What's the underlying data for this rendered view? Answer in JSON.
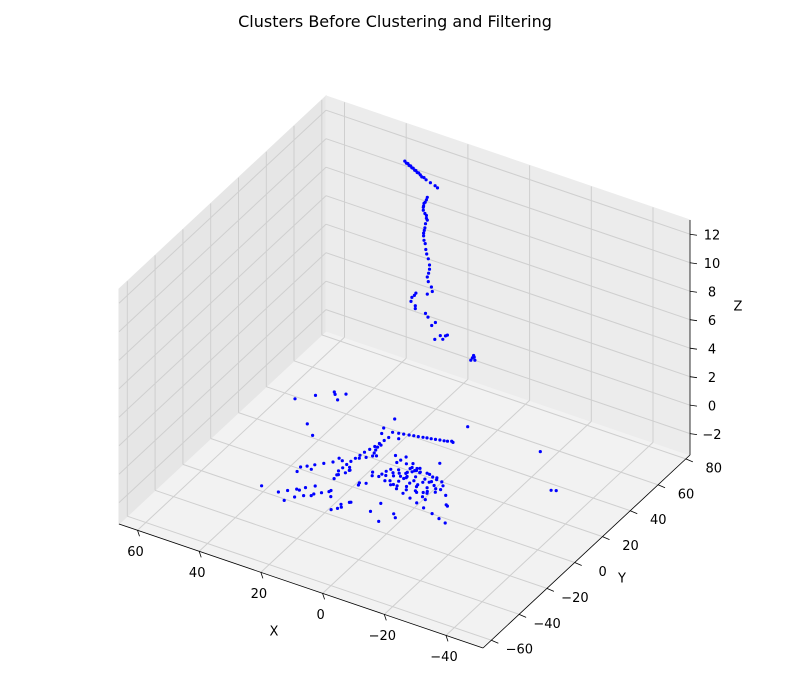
{
  "chart_data": {
    "type": "scatter",
    "title": "Clusters Before Clustering and Filtering",
    "xlabel": "X",
    "ylabel": "Y",
    "zlabel": "Z",
    "xlim": [
      -52,
      66
    ],
    "ylim": [
      -66,
      83
    ],
    "zlim": [
      -3.5,
      13
    ],
    "xticks": [
      "−40",
      "−20",
      "0",
      "20",
      "40",
      "60"
    ],
    "yticks": [
      "−60",
      "−40",
      "−20",
      "0",
      "20",
      "40",
      "60",
      "80"
    ],
    "zticks": [
      "−2",
      "0",
      "2",
      "4",
      "6",
      "8",
      "10",
      "12"
    ],
    "grid": true,
    "projection": "3d",
    "marker_color": "#0000ff",
    "series": [
      {
        "type": "scatter3d",
        "x": [
          33.6,
          33.1,
          32.6,
          32.2,
          31.7,
          31.3,
          30.9,
          30.4,
          30.0,
          29.6,
          29.1,
          28.6,
          28.1,
          27.4,
          26.7,
          25.3,
          23.8,
          23.0,
          26.3,
          26.6,
          27.0,
          27.4,
          27.5,
          27.6,
          27.6,
          27.1,
          26.6,
          26.6,
          26.3,
          26.9,
          27.1,
          27.3,
          27.5,
          27.5,
          27.4,
          27.0,
          26.8,
          26.5,
          26.0,
          25.6,
          25.6,
          25.9,
          26.3,
          26.0,
          25.0,
          24.7,
          26.3,
          30.0,
          30.5,
          31.3,
          31.6,
          30.2,
          30.2,
          26.9,
          26.1,
          23.7,
          24.9,
          19.8,
          20.4,
          22.1,
          21.3,
          23.9,
          11.3,
          11.1,
          11.7,
          10.9,
          12.2,
          -4.6,
          -5.2,
          -3.6,
          -2.7,
          -1.5,
          -0.3,
          0.9,
          2.1,
          3.2,
          4.5,
          5.8,
          7.1,
          8.6,
          10.0,
          11.7,
          -5.0,
          -3.7,
          -1.9,
          0.4,
          2.7,
          -42.0,
          -40.7,
          -20.1,
          -19.5,
          -9.7,
          -7.9,
          -23.9,
          -21.3,
          -18.4,
          -14.9,
          -12.0,
          -9.2,
          -6.3,
          -3.6,
          -1.2,
          1.2,
          3.7,
          6.3,
          -10.8,
          -9.2,
          -6.9,
          -4.0,
          -1.1,
          12.2,
          5.1,
          2.2,
          -1.7,
          -3.3,
          -7.4,
          -3.1,
          -1.9,
          -3.0,
          -5.0,
          -7.8,
          -10.4,
          -12.6,
          -13.9,
          -14.3,
          -13.7,
          -12.0,
          -9.3,
          -6.2,
          -3.0,
          0.0,
          2.3,
          3.3,
          2.7,
          0.7,
          -2.0,
          -5.1,
          -8.2,
          -10.6,
          -11.6,
          -10.9,
          -8.6,
          -5.4,
          -2.2,
          0.4,
          1.3,
          -0.3,
          -3.0,
          -5.7,
          -7.6,
          -7.8,
          -5.3,
          -2.7,
          -1.4,
          3.0,
          13.8,
          14.1,
          14.7,
          14.5,
          14.4,
          14.2,
          13.9,
          13.6,
          13.3,
          12.8,
          12.3,
          12.0,
          11.6,
          11.3,
          11.2,
          10.8,
          10.4,
          11.5,
          14.0,
          14.9,
          14.6,
          13.0,
          12.3,
          12.6,
          13.8,
          11.5,
          10.0,
          6.6,
          5.4,
          4.8,
          -3.6,
          9.5,
          11.6,
          13.0,
          16.4,
          18.3,
          20.1,
          21.9,
          23.4,
          24.7,
          16.4,
          18.3,
          20.0,
          21.8,
          23.6,
          11.7,
          13.2,
          14.7,
          16.7,
          18.5,
          8.6,
          17.8,
          21.6,
          24.4,
          19.1,
          14.9,
          29.2,
          3.8,
          4.1,
          -10.7,
          -9.3,
          -1.8,
          5.6,
          -12.9,
          -11.7,
          -10.1,
          5.0,
          6.4,
          6.7,
          5.5,
          3.6,
          -7.7,
          -13.2,
          -11.8,
          -17.0,
          -3.3,
          34.1,
          33.0,
          32.5,
          29.9,
          35.0,
          35.8,
          39.4,
          43.4,
          -4.7,
          -3.2,
          11.2,
          20.1,
          -28.3
        ],
        "y": [
          67.8,
          67.8,
          67.8,
          67.8,
          67.8,
          67.8,
          67.8,
          67.8,
          67.8,
          67.8,
          67.8,
          67.8,
          67.8,
          67.8,
          67.8,
          67.8,
          67.8,
          67.8,
          67.8,
          67.8,
          67.8,
          67.8,
          67.8,
          67.8,
          67.8,
          67.8,
          67.8,
          67.8,
          67.8,
          67.8,
          67.8,
          67.8,
          67.8,
          67.8,
          67.8,
          67.8,
          67.8,
          67.8,
          67.8,
          67.8,
          67.8,
          67.8,
          67.8,
          67.8,
          67.8,
          67.8,
          67.8,
          67.8,
          67.8,
          67.8,
          67.8,
          67.8,
          67.8,
          67.8,
          67.8,
          67.8,
          67.8,
          67.8,
          67.8,
          67.8,
          67.8,
          67.8,
          67.8,
          67.8,
          67.8,
          67.8,
          67.8,
          16.7,
          16.3,
          15.9,
          15.5,
          15.1,
          14.6,
          14.2,
          13.8,
          13.4,
          12.9,
          12.5,
          12.0,
          11.5,
          11.0,
          10.4,
          -7.2,
          -6.6,
          -5.8,
          -4.8,
          -3.8,
          8.9,
          8.1,
          -20.8,
          -20.3,
          -10.8,
          -9.9,
          -30.8,
          -29.5,
          -28.0,
          -26.4,
          -24.9,
          -23.5,
          -22.1,
          -20.8,
          -19.7,
          -18.5,
          -17.3,
          -16.0,
          -7.9,
          -7.2,
          -6.1,
          -4.8,
          -3.4,
          -19.2,
          -2.2,
          -1.0,
          -6.8,
          -5.4,
          1.9,
          -12.7,
          -10.3,
          -8.2,
          -6.8,
          -6.3,
          -6.8,
          -8.2,
          -10.2,
          -12.8,
          -15.3,
          -17.5,
          -19.0,
          -19.5,
          -19.0,
          -17.5,
          -15.4,
          -12.9,
          -10.9,
          -9.7,
          -9.5,
          -10.4,
          -12.1,
          -14.3,
          -16.4,
          -17.8,
          -18.3,
          -17.6,
          -16.1,
          -14.1,
          -12.4,
          -11.5,
          -11.8,
          -12.9,
          -14.4,
          -15.7,
          -15.1,
          -13.6,
          -13.0,
          -5.9,
          -27.1,
          -24.5,
          -21.9,
          -19.3,
          -16.7,
          -14.1,
          -11.5,
          -8.9,
          -6.3,
          -3.7,
          -1.1,
          1.5,
          4.1,
          6.7,
          -2.9,
          -4.9,
          -6.9,
          -0.9,
          7.6,
          11.1,
          18.3,
          -17.7,
          -19.5,
          -21.6,
          -24.0,
          -34.4,
          -37.9,
          -45.2,
          -43.3,
          -41.9,
          -32.1,
          -6.1,
          -8.9,
          -10.7,
          -15.4,
          -17.9,
          -20.5,
          -23.0,
          -25.2,
          -27.0,
          -34.9,
          -37.7,
          -40.2,
          -42.8,
          -45.4,
          -35.4,
          -37.5,
          -39.7,
          -42.6,
          -45.1,
          7.9,
          -14.6,
          -26.2,
          -30.2,
          -40.3,
          -41.1,
          -45.1,
          -37.2,
          -37.6,
          -37.4,
          -35.5,
          -19.0,
          -40.3,
          -13.2,
          -11.7,
          -10.0,
          -23.6,
          -26.0,
          -24.6,
          -18.1,
          -15.3,
          -42.7,
          -21.4,
          -20.3,
          -15.1,
          -7.0,
          -1.3,
          18.1,
          23.0,
          -6.8,
          20.7,
          21.9,
          16.4,
          10.5,
          28.0,
          -38.6,
          0.9,
          -49.0,
          27.9
        ],
        "z": [
          12.2,
          12.1,
          12.1,
          12.0,
          12.0,
          11.9,
          11.9,
          11.8,
          11.8,
          11.7,
          11.7,
          11.6,
          11.5,
          11.5,
          11.4,
          11.3,
          11.2,
          11.1,
          10.2,
          10.0,
          9.8,
          9.7,
          9.5,
          9.4,
          9.2,
          9.0,
          8.9,
          8.7,
          8.6,
          8.3,
          8.0,
          7.8,
          7.6,
          7.4,
          7.1,
          6.9,
          6.5,
          6.2,
          5.9,
          5.5,
          5.2,
          4.9,
          4.6,
          4.3,
          4.0,
          3.7,
          3.4,
          3.2,
          3.0,
          2.8,
          2.5,
          2.3,
          2.1,
          2.0,
          1.8,
          1.6,
          1.3,
          1.0,
          0.9,
          0.8,
          0.6,
          0.4,
          0.2,
          0.1,
          0.0,
          -0.1,
          -0.2,
          0,
          0,
          0,
          0,
          0,
          0,
          0,
          0,
          0,
          0,
          0,
          0,
          0,
          0,
          0,
          0,
          0,
          0,
          0,
          0,
          0,
          0,
          0,
          0,
          0,
          0,
          0,
          0,
          0,
          0,
          0,
          0,
          0,
          0,
          0,
          0,
          0,
          0,
          0,
          0,
          0,
          0,
          0,
          0,
          0,
          0,
          0,
          0,
          0,
          0,
          0,
          0,
          0,
          0,
          0,
          0,
          0,
          0,
          0,
          0,
          0,
          0,
          0,
          0,
          0,
          0,
          0,
          0,
          0,
          0,
          0,
          0,
          0,
          0,
          0,
          0,
          0,
          0,
          0,
          0,
          0,
          0,
          0,
          0,
          0,
          0,
          0,
          0,
          0,
          0,
          0,
          0,
          0,
          0,
          0,
          0,
          0,
          0,
          0,
          0,
          0,
          0,
          0,
          0,
          0,
          0,
          0,
          0,
          0,
          0,
          0,
          0,
          0,
          0,
          0,
          0,
          0,
          0,
          0,
          0,
          0,
          0,
          0,
          0,
          0,
          0,
          0,
          0,
          0,
          0,
          0,
          0,
          0,
          0,
          0,
          0,
          0,
          0,
          0,
          0,
          0,
          0,
          0,
          0,
          0,
          0,
          0,
          0,
          0,
          0,
          0,
          0,
          0,
          0,
          0,
          0,
          0,
          0,
          0,
          0,
          0,
          0,
          0,
          0,
          0,
          0,
          0,
          0,
          0,
          0,
          0,
          0,
          0,
          0,
          0,
          0,
          0,
          0,
          0,
          0,
          0,
          0,
          0,
          0,
          0,
          0,
          0
        ]
      }
    ]
  }
}
